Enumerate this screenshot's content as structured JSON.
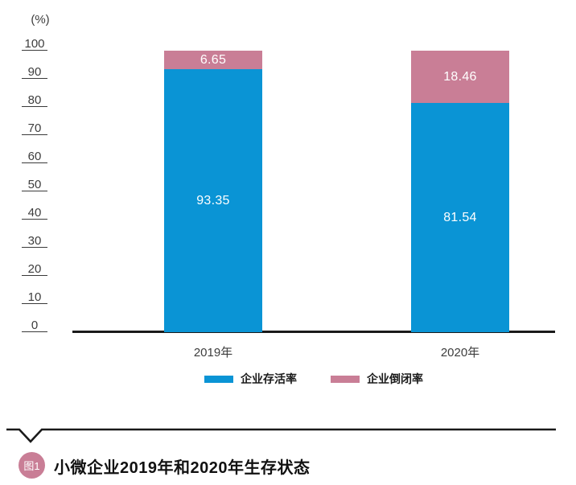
{
  "chart_data": {
    "type": "bar",
    "stacked": true,
    "unit_label": "(%)",
    "categories": [
      "2019年",
      "2020年"
    ],
    "series": [
      {
        "name": "企业存活率",
        "values": [
          93.35,
          81.54
        ],
        "color": "#0a94d5"
      },
      {
        "name": "企业倒闭率",
        "values": [
          6.65,
          18.46
        ],
        "color": "#c97e96"
      }
    ],
    "value_labels": [
      "93.35",
      "81.54",
      "6.65",
      "18.46"
    ],
    "yticks": [
      0,
      10,
      20,
      30,
      40,
      50,
      60,
      70,
      80,
      90,
      100
    ],
    "ylim": [
      0,
      100
    ],
    "grid": false,
    "legend_position": "bottom",
    "xlabel": "",
    "ylabel": "(%)"
  },
  "caption": {
    "badge": "图1",
    "title": "小微企业2019年和2020年生存状态"
  },
  "colors": {
    "survival_blue": "#0a94d5",
    "closure_pink": "#c97e96",
    "axis_text": "#3d3d3d",
    "line_black": "#1a1a1a",
    "badge_pink": "#c97e96"
  }
}
